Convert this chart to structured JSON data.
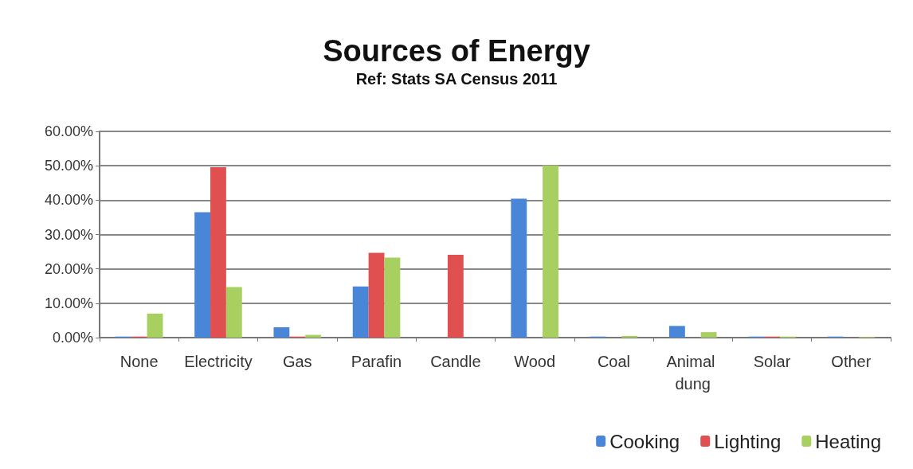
{
  "chart_data": {
    "type": "bar",
    "title": "Sources of Energy",
    "subtitle": "Ref: Stats SA Census 2011",
    "categories": [
      "None",
      "Electricity",
      "Gas",
      "Parafin",
      "Candle",
      "Wood",
      "Coal",
      "Animal dung",
      "Solar",
      "Other"
    ],
    "series": [
      {
        "name": "Cooking",
        "color": "#4a86d8",
        "values": [
          0.3,
          36.5,
          3.0,
          14.9,
          0,
          40.4,
          0.3,
          3.4,
          0.3,
          0.3
        ]
      },
      {
        "name": "Lighting",
        "color": "#e05050",
        "values": [
          0.3,
          49.6,
          0.3,
          24.7,
          24.1,
          0,
          0,
          0,
          0.3,
          0
        ]
      },
      {
        "name": "Heating",
        "color": "#a8d060",
        "values": [
          7.0,
          14.7,
          0.8,
          23.3,
          0,
          50.1,
          0.5,
          1.6,
          0.3,
          0.2
        ]
      }
    ],
    "ylim": [
      0,
      60
    ],
    "yticks": [
      {
        "value": 0,
        "label": "0.00%"
      },
      {
        "value": 10,
        "label": "10.00%"
      },
      {
        "value": 20,
        "label": "20.00%"
      },
      {
        "value": 30,
        "label": "30.00%"
      },
      {
        "value": 40,
        "label": "40.00%"
      },
      {
        "value": 50,
        "label": "50.00%"
      },
      {
        "value": 60,
        "label": "60.00%"
      }
    ],
    "grid": "y",
    "legend": "bottom right"
  }
}
